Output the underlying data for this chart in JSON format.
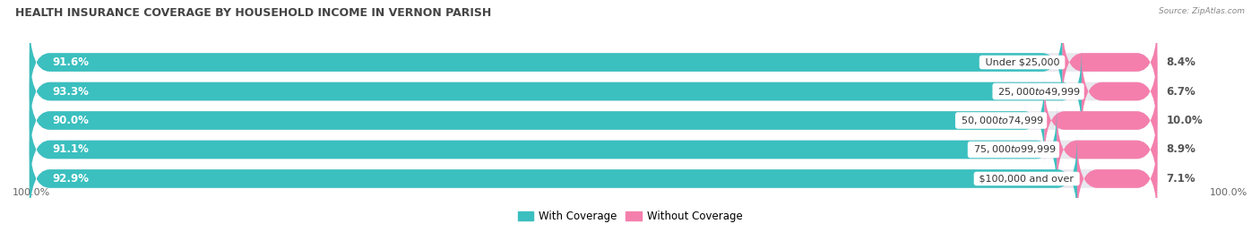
{
  "title": "HEALTH INSURANCE COVERAGE BY HOUSEHOLD INCOME IN VERNON PARISH",
  "source": "Source: ZipAtlas.com",
  "categories": [
    "Under $25,000",
    "$25,000 to $49,999",
    "$50,000 to $74,999",
    "$75,000 to $99,999",
    "$100,000 and over"
  ],
  "with_coverage": [
    91.6,
    93.3,
    90.0,
    91.1,
    92.9
  ],
  "without_coverage": [
    8.4,
    6.7,
    10.0,
    8.9,
    7.1
  ],
  "color_with": "#3BBFBF",
  "color_without": "#F47FAD",
  "color_bg_bar": "#E8E8EE",
  "title_fontsize": 9,
  "label_fontsize": 8.5,
  "tick_fontsize": 8,
  "legend_fontsize": 8.5,
  "fig_bg": "#FFFFFF"
}
